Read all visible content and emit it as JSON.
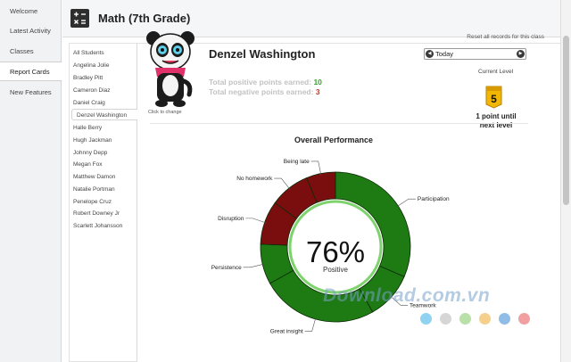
{
  "nav": {
    "items": [
      {
        "label": "Welcome"
      },
      {
        "label": "Latest Activity"
      },
      {
        "label": "Classes"
      },
      {
        "label": "Report Cards",
        "active": true
      },
      {
        "label": "New Features"
      }
    ]
  },
  "header": {
    "icon": "calculator-icon",
    "class_title": "Math (7th Grade)",
    "reset_link": "Reset all records for this class"
  },
  "students": [
    "All Students",
    "Angelina Jolie",
    "Bradley Pitt",
    "Cameron Diaz",
    "Daniel Craig",
    "Denzel Washington",
    "Halle Berry",
    "Hugh Jackman",
    "Johnny Depp",
    "Megan Fox",
    "Matthew Damon",
    "Natalie Portman",
    "Penelope Cruz",
    "Robert Downey Jr",
    "Scarlett Johansson"
  ],
  "selected_student": "Denzel Washington",
  "profile": {
    "name": "Denzel Washington",
    "click_to_change": "Click to change",
    "positive_label": "Total positive points earned:",
    "positive_value": "10",
    "negative_label": "Total negative points earned:",
    "negative_value": "3"
  },
  "date_selector": {
    "value": "Today",
    "prev_icon": "chevron-left-icon",
    "next_icon": "chevron-right-icon"
  },
  "level": {
    "label": "Current Level",
    "value": "5",
    "until_text_1": "1 point until",
    "until_text_2": "next level"
  },
  "performance": {
    "title": "Overall Performance",
    "percent": "76%",
    "percent_label": "Positive"
  },
  "chart_data": {
    "type": "pie",
    "title": "Overall Performance",
    "center_text": "76%",
    "center_sub": "Positive",
    "slices": [
      {
        "label": "Participation",
        "value": 4,
        "kind": "positive"
      },
      {
        "label": "Teamwork",
        "value": 1.3,
        "kind": "positive"
      },
      {
        "label": "Great insight",
        "value": 3.2,
        "kind": "positive"
      },
      {
        "label": "Persistence",
        "value": 1.1,
        "kind": "positive"
      },
      {
        "label": "Disruption",
        "value": 1.2,
        "kind": "negative"
      },
      {
        "label": "No homework",
        "value": 1.1,
        "kind": "negative"
      },
      {
        "label": "Being late",
        "value": 0.8,
        "kind": "negative"
      }
    ],
    "colors": {
      "positive": "#1e7a12",
      "negative": "#7a0e0e"
    }
  },
  "legend_dots": [
    "#8fd3f0",
    "#d6d6d6",
    "#b8e0a8",
    "#f5cf8c",
    "#8fbde6",
    "#f0a0a0"
  ],
  "watermark": "Download.com.vn",
  "colors": {
    "accent_green": "#3aa12e",
    "accent_red": "#cc3322",
    "badge": "#f2b705"
  }
}
